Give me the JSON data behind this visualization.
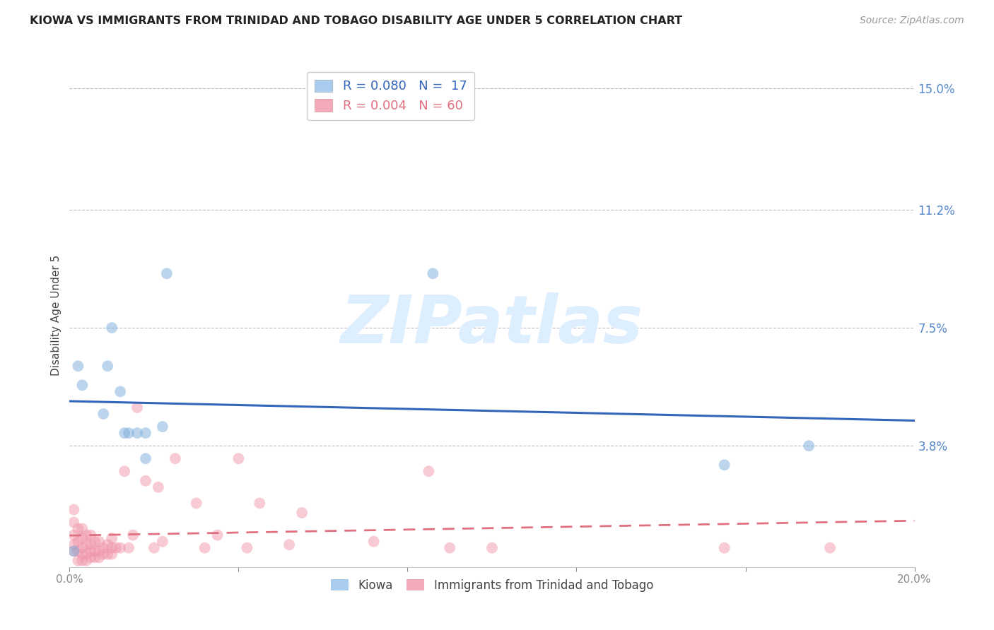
{
  "title": "KIOWA VS IMMIGRANTS FROM TRINIDAD AND TOBAGO DISABILITY AGE UNDER 5 CORRELATION CHART",
  "source": "Source: ZipAtlas.com",
  "ylabel": "Disability Age Under 5",
  "xlim": [
    0.0,
    0.2
  ],
  "ylim": [
    0.0,
    0.158
  ],
  "xticks": [
    0.0,
    0.04,
    0.08,
    0.12,
    0.16,
    0.2
  ],
  "xticklabels": [
    "0.0%",
    "",
    "",
    "",
    "",
    "20.0%"
  ],
  "ytick_labels_right": [
    "15.0%",
    "11.2%",
    "7.5%",
    "3.8%"
  ],
  "ytick_vals_right": [
    0.15,
    0.112,
    0.075,
    0.038
  ],
  "gridline_y": [
    0.15,
    0.112,
    0.075,
    0.038
  ],
  "kiowa_scatter_x": [
    0.001,
    0.002,
    0.003,
    0.008,
    0.009,
    0.01,
    0.012,
    0.013,
    0.014,
    0.016,
    0.018,
    0.018,
    0.022,
    0.023,
    0.086,
    0.155,
    0.175
  ],
  "kiowa_scatter_y": [
    0.005,
    0.063,
    0.057,
    0.048,
    0.063,
    0.075,
    0.055,
    0.042,
    0.042,
    0.042,
    0.042,
    0.034,
    0.044,
    0.092,
    0.092,
    0.032,
    0.038
  ],
  "tt_scatter_x": [
    0.001,
    0.001,
    0.001,
    0.001,
    0.001,
    0.002,
    0.002,
    0.002,
    0.002,
    0.003,
    0.003,
    0.003,
    0.003,
    0.003,
    0.004,
    0.004,
    0.004,
    0.004,
    0.005,
    0.005,
    0.005,
    0.005,
    0.006,
    0.006,
    0.006,
    0.007,
    0.007,
    0.007,
    0.008,
    0.008,
    0.009,
    0.009,
    0.01,
    0.01,
    0.01,
    0.011,
    0.012,
    0.013,
    0.014,
    0.015,
    0.016,
    0.018,
    0.02,
    0.021,
    0.022,
    0.025,
    0.03,
    0.032,
    0.035,
    0.04,
    0.042,
    0.045,
    0.052,
    0.055,
    0.072,
    0.085,
    0.09,
    0.1,
    0.155,
    0.18
  ],
  "tt_scatter_y": [
    0.005,
    0.007,
    0.01,
    0.014,
    0.018,
    0.002,
    0.005,
    0.008,
    0.012,
    0.002,
    0.004,
    0.006,
    0.009,
    0.012,
    0.002,
    0.004,
    0.007,
    0.01,
    0.003,
    0.005,
    0.007,
    0.01,
    0.003,
    0.005,
    0.008,
    0.003,
    0.005,
    0.008,
    0.004,
    0.006,
    0.004,
    0.007,
    0.004,
    0.006,
    0.009,
    0.006,
    0.006,
    0.03,
    0.006,
    0.01,
    0.05,
    0.027,
    0.006,
    0.025,
    0.008,
    0.034,
    0.02,
    0.006,
    0.01,
    0.034,
    0.006,
    0.02,
    0.007,
    0.017,
    0.008,
    0.03,
    0.006,
    0.006,
    0.006,
    0.006
  ],
  "kiowa_color": "#7aaddd",
  "tt_color": "#f096aa",
  "kiowa_line_color": "#3366bb",
  "tt_line_color": "#e07080",
  "scatter_size": 130,
  "scatter_alpha": 0.5,
  "background_color": "#ffffff",
  "watermark_text": "ZIPatlas",
  "watermark_color": "#ddeeff",
  "legend_box_color_kiowa": "#aaccee",
  "legend_box_color_tt": "#f4aabb",
  "legend_text_kiowa": "R = 0.080   N =  17",
  "legend_text_tt": "R = 0.004   N = 60",
  "bottom_legend_kiowa": "Kiowa",
  "bottom_legend_tt": "Immigrants from Trinidad and Tobago"
}
